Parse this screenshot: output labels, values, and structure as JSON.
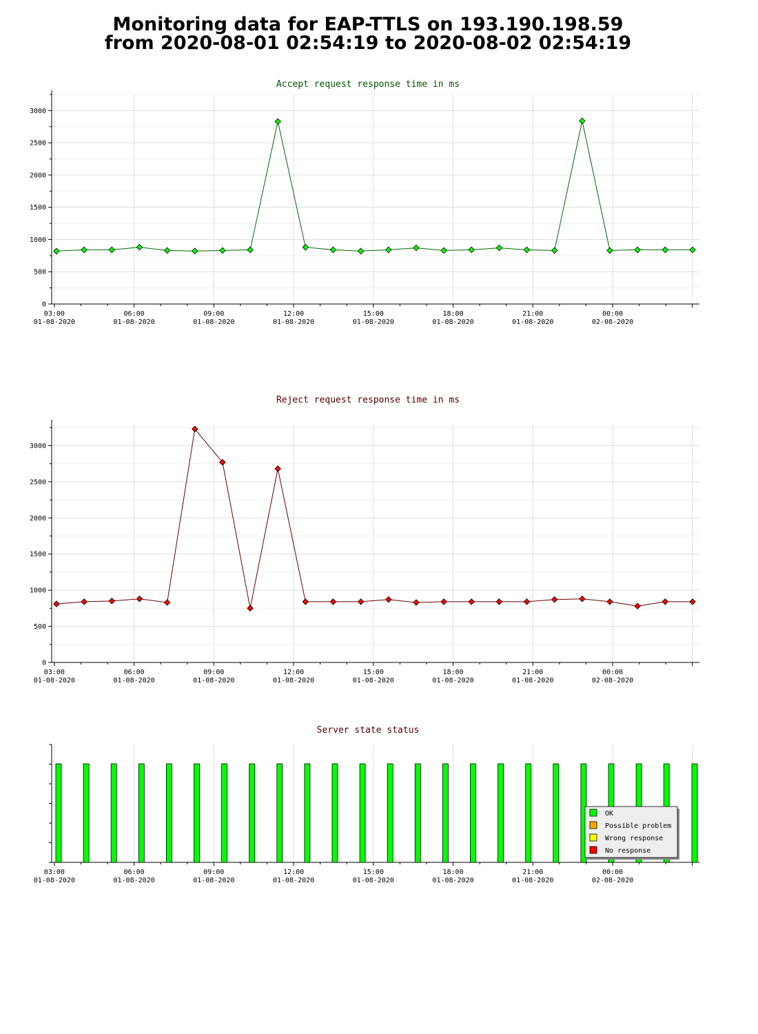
{
  "page": {
    "title_line1": "Monitoring data for EAP-TTLS on 193.190.198.59",
    "title_line2": "from 2020-08-01 02:54:19 to 2020-08-02 02:54:19"
  },
  "colors": {
    "accept": "#00ff00",
    "accept_line": "#006600",
    "reject": "#ff0000",
    "reject_line": "#660000",
    "ok": "#00ff00",
    "possible_problem": "#ffa500",
    "wrong_response": "#ffff00",
    "no_response": "#ff0000",
    "grid": "#dddddd"
  },
  "chart_data": [
    {
      "type": "line",
      "title": "Accept request response time in ms",
      "x": [
        "2020-08-01 02:54",
        "2020-08-01 03:54",
        "2020-08-01 04:54",
        "2020-08-01 05:54",
        "2020-08-01 06:54",
        "2020-08-01 07:54",
        "2020-08-01 08:54",
        "2020-08-01 09:54",
        "2020-08-01 10:54",
        "2020-08-01 11:54",
        "2020-08-01 12:54",
        "2020-08-01 13:54",
        "2020-08-01 14:54",
        "2020-08-01 15:54",
        "2020-08-01 16:54",
        "2020-08-01 17:54",
        "2020-08-01 18:54",
        "2020-08-01 19:54",
        "2020-08-01 20:54",
        "2020-08-01 21:54",
        "2020-08-01 22:54",
        "2020-08-01 23:54",
        "2020-08-02 00:54",
        "2020-08-02 02:00"
      ],
      "values": [
        820,
        840,
        840,
        880,
        830,
        820,
        830,
        840,
        2830,
        880,
        840,
        820,
        840,
        870,
        830,
        840,
        870,
        840,
        830,
        2840,
        830,
        840,
        840,
        840
      ],
      "ylim": [
        0,
        3250
      ],
      "yticks": [
        0,
        500,
        1000,
        1500,
        2000,
        2500,
        3000
      ],
      "xticks": [
        {
          "time": "03:00",
          "date": "01-08-2020"
        },
        {
          "time": "06:00",
          "date": "01-08-2020"
        },
        {
          "time": "09:00",
          "date": "01-08-2020"
        },
        {
          "time": "12:00",
          "date": "01-08-2020"
        },
        {
          "time": "15:00",
          "date": "01-08-2020"
        },
        {
          "time": "18:00",
          "date": "01-08-2020"
        },
        {
          "time": "21:00",
          "date": "01-08-2020"
        },
        {
          "time": "00:00",
          "date": "02-08-2020"
        }
      ],
      "grid": true
    },
    {
      "type": "line",
      "title": "Reject request response time in ms",
      "x": [
        "2020-08-01 02:54",
        "2020-08-01 03:54",
        "2020-08-01 04:54",
        "2020-08-01 05:54",
        "2020-08-01 06:54",
        "2020-08-01 07:54",
        "2020-08-01 08:54",
        "2020-08-01 09:54",
        "2020-08-01 10:54",
        "2020-08-01 11:54",
        "2020-08-01 12:54",
        "2020-08-01 13:54",
        "2020-08-01 14:54",
        "2020-08-01 15:54",
        "2020-08-01 16:54",
        "2020-08-01 17:54",
        "2020-08-01 18:54",
        "2020-08-01 19:54",
        "2020-08-01 20:54",
        "2020-08-01 21:54",
        "2020-08-01 22:54",
        "2020-08-01 23:54",
        "2020-08-02 00:54",
        "2020-08-02 02:00"
      ],
      "values": [
        810,
        840,
        850,
        880,
        830,
        3230,
        2770,
        750,
        2680,
        840,
        840,
        840,
        870,
        830,
        840,
        840,
        840,
        840,
        870,
        880,
        840,
        780,
        840,
        840
      ],
      "ylim": [
        0,
        3300
      ],
      "yticks": [
        0,
        500,
        1000,
        1500,
        2000,
        2500,
        3000
      ],
      "xticks": [
        {
          "time": "03:00",
          "date": "01-08-2020"
        },
        {
          "time": "06:00",
          "date": "01-08-2020"
        },
        {
          "time": "09:00",
          "date": "01-08-2020"
        },
        {
          "time": "12:00",
          "date": "01-08-2020"
        },
        {
          "time": "15:00",
          "date": "01-08-2020"
        },
        {
          "time": "18:00",
          "date": "01-08-2020"
        },
        {
          "time": "21:00",
          "date": "01-08-2020"
        },
        {
          "time": "00:00",
          "date": "02-08-2020"
        }
      ],
      "grid": true
    },
    {
      "type": "bar",
      "title": "Server state status",
      "x": [
        "2020-08-01 02:54",
        "2020-08-01 03:54",
        "2020-08-01 04:54",
        "2020-08-01 05:54",
        "2020-08-01 06:54",
        "2020-08-01 07:54",
        "2020-08-01 08:54",
        "2020-08-01 09:54",
        "2020-08-01 10:54",
        "2020-08-01 11:54",
        "2020-08-01 12:54",
        "2020-08-01 13:54",
        "2020-08-01 14:54",
        "2020-08-01 15:54",
        "2020-08-01 16:54",
        "2020-08-01 17:54",
        "2020-08-01 18:54",
        "2020-08-01 19:54",
        "2020-08-01 20:54",
        "2020-08-01 21:54",
        "2020-08-01 22:54",
        "2020-08-01 23:54",
        "2020-08-02 00:54",
        "2020-08-02 02:00"
      ],
      "states": [
        "OK",
        "OK",
        "OK",
        "OK",
        "OK",
        "OK",
        "OK",
        "OK",
        "OK",
        "OK",
        "OK",
        "OK",
        "OK",
        "OK",
        "OK",
        "OK",
        "OK",
        "OK",
        "OK",
        "OK",
        "OK",
        "OK",
        "OK",
        "OK"
      ],
      "xticks": [
        {
          "time": "03:00",
          "date": "01-08-2020"
        },
        {
          "time": "06:00",
          "date": "01-08-2020"
        },
        {
          "time": "09:00",
          "date": "01-08-2020"
        },
        {
          "time": "12:00",
          "date": "01-08-2020"
        },
        {
          "time": "15:00",
          "date": "01-08-2020"
        },
        {
          "time": "18:00",
          "date": "01-08-2020"
        },
        {
          "time": "21:00",
          "date": "01-08-2020"
        },
        {
          "time": "00:00",
          "date": "02-08-2020"
        }
      ],
      "legend": {
        "placement": "bottom-right",
        "items": [
          {
            "label": "OK",
            "color": "#00ff00"
          },
          {
            "label": "Possible problem",
            "color": "#ffa500"
          },
          {
            "label": "Wrong response",
            "color": "#ffff00"
          },
          {
            "label": "No response",
            "color": "#ff0000"
          }
        ]
      }
    }
  ]
}
